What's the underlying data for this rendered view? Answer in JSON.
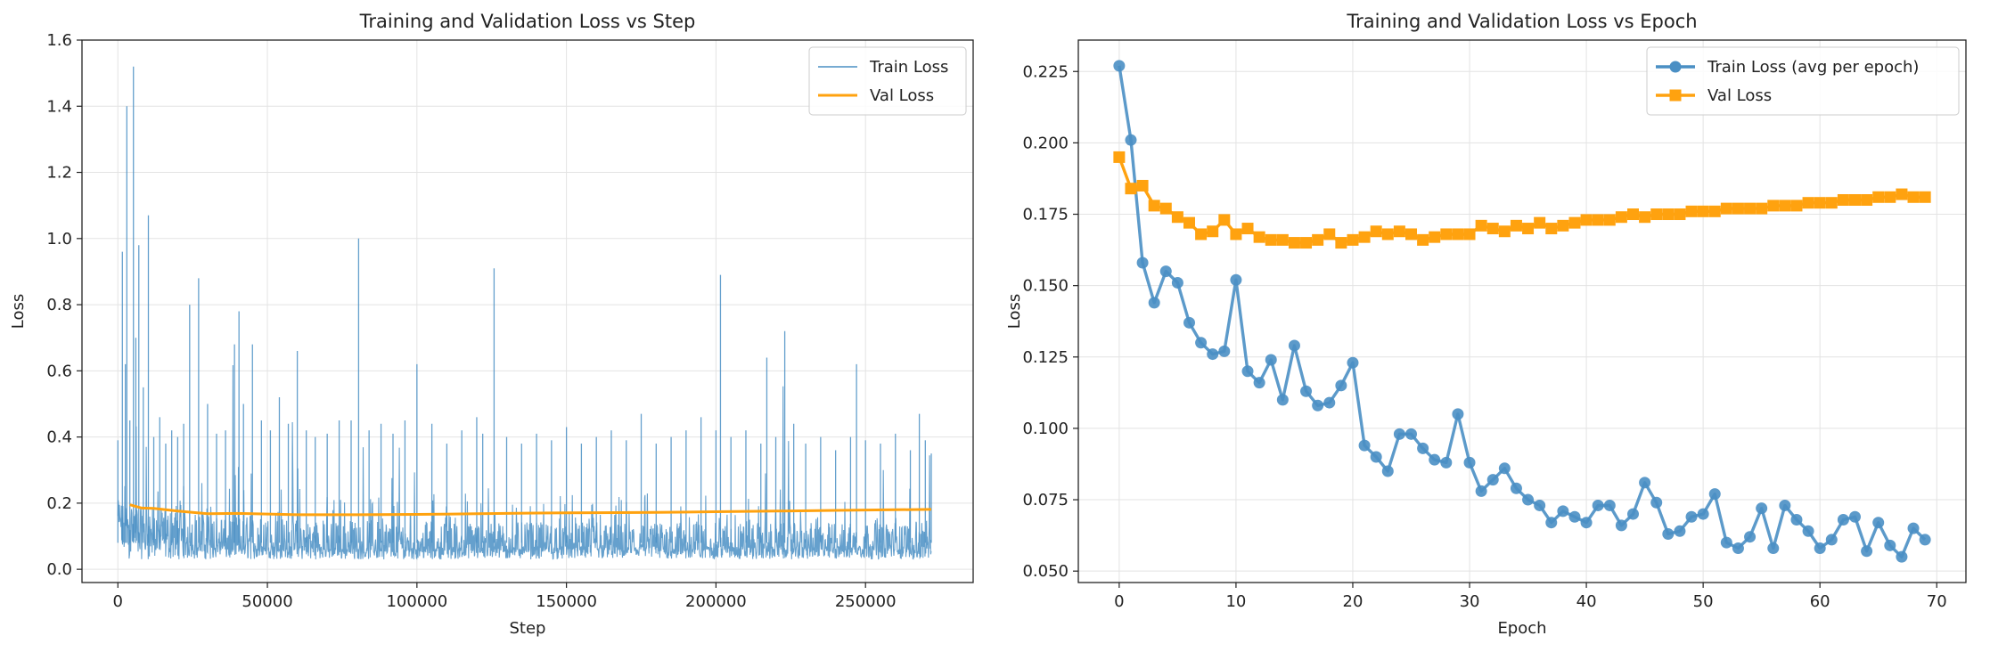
{
  "chart_data": [
    {
      "type": "line",
      "title": "Training and Validation Loss vs Step",
      "xlabel": "Step",
      "ylabel": "Loss",
      "xlim": [
        -12000,
        286000
      ],
      "ylim": [
        -0.04,
        1.6
      ],
      "xticks": [
        0,
        50000,
        100000,
        150000,
        200000,
        250000
      ],
      "xtick_labels": [
        "0",
        "50000",
        "100000",
        "150000",
        "200000",
        "250000"
      ],
      "yticks": [
        0.0,
        0.2,
        0.4,
        0.6,
        0.8,
        1.0,
        1.2,
        1.4,
        1.6
      ],
      "ytick_labels": [
        "0.0",
        "0.2",
        "0.4",
        "0.6",
        "0.8",
        "1.0",
        "1.2",
        "1.4",
        "1.6"
      ],
      "grid": true,
      "legend": "top-right",
      "series": [
        {
          "name": "Train Loss",
          "color": "#4a8fc4",
          "x": [
            0,
            1500,
            2500,
            3000,
            4000,
            5200,
            6000,
            7000,
            8500,
            10200,
            12000,
            14000,
            16000,
            18000,
            20000,
            22000,
            24000,
            27000,
            30000,
            33000,
            36000,
            39000,
            40500,
            42000,
            45000,
            48000,
            51000,
            54000,
            57000,
            60000,
            63000,
            66000,
            70000,
            74000,
            78000,
            80500,
            84000,
            88000,
            92000,
            96000,
            100000,
            105000,
            110000,
            115000,
            120000,
            122000,
            125800,
            130000,
            135000,
            140000,
            145000,
            150000,
            155000,
            160000,
            165000,
            170000,
            175000,
            180000,
            185000,
            190000,
            195000,
            200000,
            201500,
            205000,
            210000,
            215000,
            217000,
            220000,
            223000,
            226000,
            230000,
            235000,
            240000,
            245000,
            247000,
            250000,
            255000,
            260000,
            265000,
            268000,
            270000,
            272000
          ],
          "y": [
            0.39,
            0.96,
            0.62,
            1.4,
            0.45,
            1.52,
            0.7,
            0.98,
            0.55,
            1.07,
            0.4,
            0.46,
            0.38,
            0.42,
            0.4,
            0.44,
            0.8,
            0.88,
            0.5,
            0.41,
            0.42,
            0.68,
            0.78,
            0.5,
            0.68,
            0.45,
            0.42,
            0.52,
            0.44,
            0.66,
            0.42,
            0.4,
            0.41,
            0.45,
            0.45,
            1.0,
            0.42,
            0.44,
            0.41,
            0.45,
            0.62,
            0.44,
            0.38,
            0.42,
            0.46,
            0.41,
            0.91,
            0.4,
            0.38,
            0.41,
            0.39,
            0.43,
            0.38,
            0.4,
            0.42,
            0.39,
            0.47,
            0.38,
            0.4,
            0.42,
            0.46,
            0.42,
            0.89,
            0.4,
            0.42,
            0.38,
            0.64,
            0.4,
            0.72,
            0.44,
            0.38,
            0.4,
            0.36,
            0.4,
            0.62,
            0.39,
            0.38,
            0.41,
            0.36,
            0.47,
            0.39,
            0.35
          ],
          "lower_envelope": 0.03
        },
        {
          "name": "Val Loss",
          "color": "#ffa20f",
          "x": [
            4000,
            8000,
            12000,
            20000,
            30000,
            40000,
            60000,
            80000,
            100000,
            120000,
            140000,
            160000,
            180000,
            200000,
            220000,
            240000,
            260000,
            272000
          ],
          "y": [
            0.195,
            0.185,
            0.184,
            0.176,
            0.168,
            0.169,
            0.165,
            0.165,
            0.166,
            0.168,
            0.17,
            0.171,
            0.172,
            0.174,
            0.176,
            0.178,
            0.18,
            0.181
          ]
        }
      ]
    },
    {
      "type": "line",
      "title": "Training and Validation Loss vs Epoch",
      "xlabel": "Epoch",
      "ylabel": "Loss",
      "xlim": [
        -3.5,
        72.5
      ],
      "ylim": [
        0.046,
        0.236
      ],
      "xticks": [
        0,
        10,
        20,
        30,
        40,
        50,
        60,
        70
      ],
      "xtick_labels": [
        "0",
        "10",
        "20",
        "30",
        "40",
        "50",
        "60",
        "70"
      ],
      "yticks": [
        0.05,
        0.075,
        0.1,
        0.125,
        0.15,
        0.175,
        0.2,
        0.225
      ],
      "ytick_labels": [
        "0.050",
        "0.075",
        "0.100",
        "0.125",
        "0.150",
        "0.175",
        "0.200",
        "0.225"
      ],
      "grid": true,
      "legend": "top-right",
      "series": [
        {
          "name": "Train Loss (avg per epoch)",
          "color": "#4a8fc4",
          "marker": "circle",
          "x": [
            0,
            1,
            2,
            3,
            4,
            5,
            6,
            7,
            8,
            9,
            10,
            11,
            12,
            13,
            14,
            15,
            16,
            17,
            18,
            19,
            20,
            21,
            22,
            23,
            24,
            25,
            26,
            27,
            28,
            29,
            30,
            31,
            32,
            33,
            34,
            35,
            36,
            37,
            38,
            39,
            40,
            41,
            42,
            43,
            44,
            45,
            46,
            47,
            48,
            49,
            50,
            51,
            52,
            53,
            54,
            55,
            56,
            57,
            58,
            59,
            60,
            61,
            62,
            63,
            64,
            65,
            66,
            67,
            68,
            69
          ],
          "y": [
            0.227,
            0.201,
            0.158,
            0.144,
            0.155,
            0.151,
            0.137,
            0.13,
            0.126,
            0.127,
            0.152,
            0.12,
            0.116,
            0.124,
            0.11,
            0.129,
            0.113,
            0.108,
            0.109,
            0.115,
            0.123,
            0.094,
            0.09,
            0.085,
            0.098,
            0.098,
            0.093,
            0.089,
            0.088,
            0.105,
            0.088,
            0.078,
            0.082,
            0.086,
            0.079,
            0.075,
            0.073,
            0.067,
            0.071,
            0.069,
            0.067,
            0.073,
            0.073,
            0.066,
            0.07,
            0.081,
            0.074,
            0.063,
            0.064,
            0.069,
            0.07,
            0.077,
            0.06,
            0.058,
            0.062,
            0.072,
            0.058,
            0.073,
            0.068,
            0.064,
            0.058,
            0.061,
            0.068,
            0.069,
            0.057,
            0.067,
            0.059,
            0.055,
            0.065,
            0.061
          ]
        },
        {
          "name": "Val Loss",
          "color": "#ffa20f",
          "marker": "square",
          "x": [
            0,
            1,
            2,
            3,
            4,
            5,
            6,
            7,
            8,
            9,
            10,
            11,
            12,
            13,
            14,
            15,
            16,
            17,
            18,
            19,
            20,
            21,
            22,
            23,
            24,
            25,
            26,
            27,
            28,
            29,
            30,
            31,
            32,
            33,
            34,
            35,
            36,
            37,
            38,
            39,
            40,
            41,
            42,
            43,
            44,
            45,
            46,
            47,
            48,
            49,
            50,
            51,
            52,
            53,
            54,
            55,
            56,
            57,
            58,
            59,
            60,
            61,
            62,
            63,
            64,
            65,
            66,
            67,
            68,
            69
          ],
          "y": [
            0.195,
            0.184,
            0.185,
            0.178,
            0.177,
            0.174,
            0.172,
            0.168,
            0.169,
            0.173,
            0.168,
            0.17,
            0.167,
            0.166,
            0.166,
            0.165,
            0.165,
            0.166,
            0.168,
            0.165,
            0.166,
            0.167,
            0.169,
            0.168,
            0.169,
            0.168,
            0.166,
            0.167,
            0.168,
            0.168,
            0.168,
            0.171,
            0.17,
            0.169,
            0.171,
            0.17,
            0.172,
            0.17,
            0.171,
            0.172,
            0.173,
            0.173,
            0.173,
            0.174,
            0.175,
            0.174,
            0.175,
            0.175,
            0.175,
            0.176,
            0.176,
            0.176,
            0.177,
            0.177,
            0.177,
            0.177,
            0.178,
            0.178,
            0.178,
            0.179,
            0.179,
            0.179,
            0.18,
            0.18,
            0.18,
            0.181,
            0.181,
            0.182,
            0.181,
            0.181
          ]
        }
      ]
    }
  ]
}
